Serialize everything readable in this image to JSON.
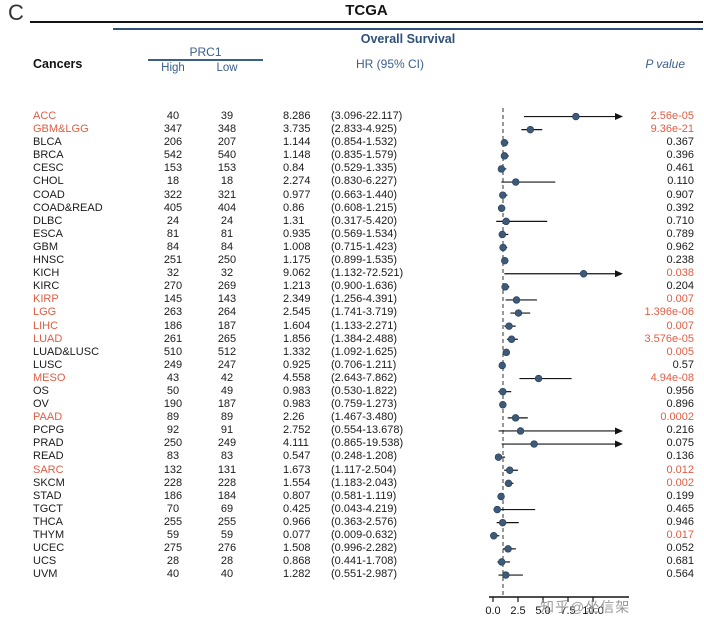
{
  "panel_label": "C",
  "title": "TCGA",
  "subtitle": "Overall Survival",
  "watermark": "知乎@坐信架",
  "header": {
    "cancers": "Cancers",
    "group": "PRC1",
    "high": "High",
    "low": "Low",
    "hr_ci": "HR (95% CI)",
    "p_value": "P value"
  },
  "colors": {
    "accent_blue": "#3c5f8c",
    "line_blue": "#2e517c",
    "point_blue": "#3d5a7a",
    "highlight_red": "#e05c43",
    "axis_black": "#141414"
  },
  "chart_data": {
    "type": "forest",
    "title": "TCGA",
    "subtitle": "Overall Survival",
    "xlim": [
      0,
      12.5
    ],
    "dashed_line_x": 1,
    "tick_values": [
      0,
      2.5,
      5,
      7.5,
      10
    ],
    "tick_labels": [
      "0.0",
      "2.5",
      "5.0",
      "7.5",
      "10.0"
    ],
    "rows": [
      {
        "cancer": "ACC",
        "high": 40,
        "low": 39,
        "hr": 8.286,
        "ci": "(3.096-22.117)",
        "ci_low": 3.096,
        "ci_high": 22.117,
        "p": "2.56e-05",
        "red_name": true,
        "red_p": true
      },
      {
        "cancer": "GBM&LGG",
        "high": 347,
        "low": 348,
        "hr": 3.735,
        "ci": "(2.833-4.925)",
        "ci_low": 2.833,
        "ci_high": 4.925,
        "p": "9.36e-21",
        "red_name": true,
        "red_p": true
      },
      {
        "cancer": "BLCA",
        "high": 206,
        "low": 207,
        "hr": 1.144,
        "ci": "(0.854-1.532)",
        "ci_low": 0.854,
        "ci_high": 1.532,
        "p": "0.367",
        "red_name": false,
        "red_p": false
      },
      {
        "cancer": "BRCA",
        "high": 542,
        "low": 540,
        "hr": 1.148,
        "ci": "(0.835-1.579)",
        "ci_low": 0.835,
        "ci_high": 1.579,
        "p": "0.396",
        "red_name": false,
        "red_p": false
      },
      {
        "cancer": "CESC",
        "high": 153,
        "low": 153,
        "hr": 0.84,
        "ci": "(0.529-1.335)",
        "ci_low": 0.529,
        "ci_high": 1.335,
        "p": "0.461",
        "red_name": false,
        "red_p": false
      },
      {
        "cancer": "CHOL",
        "high": 18,
        "low": 18,
        "hr": 2.274,
        "ci": "(0.830-6.227)",
        "ci_low": 0.83,
        "ci_high": 6.227,
        "p": "0.110",
        "red_name": false,
        "red_p": false
      },
      {
        "cancer": "COAD",
        "high": 322,
        "low": 321,
        "hr": 0.977,
        "ci": "(0.663-1.440)",
        "ci_low": 0.663,
        "ci_high": 1.44,
        "p": "0.907",
        "red_name": false,
        "red_p": false
      },
      {
        "cancer": "COAD&READ",
        "high": 405,
        "low": 404,
        "hr": 0.86,
        "ci": "(0.608-1.215)",
        "ci_low": 0.608,
        "ci_high": 1.215,
        "p": "0.392",
        "red_name": false,
        "red_p": false
      },
      {
        "cancer": "DLBC",
        "high": 24,
        "low": 24,
        "hr": 1.31,
        "ci": "(0.317-5.420)",
        "ci_low": 0.317,
        "ci_high": 5.42,
        "p": "0.710",
        "red_name": false,
        "red_p": false
      },
      {
        "cancer": "ESCA",
        "high": 81,
        "low": 81,
        "hr": 0.935,
        "ci": "(0.569-1.534)",
        "ci_low": 0.569,
        "ci_high": 1.534,
        "p": "0.789",
        "red_name": false,
        "red_p": false
      },
      {
        "cancer": "GBM",
        "high": 84,
        "low": 84,
        "hr": 1.008,
        "ci": "(0.715-1.423)",
        "ci_low": 0.715,
        "ci_high": 1.423,
        "p": "0.962",
        "red_name": false,
        "red_p": false
      },
      {
        "cancer": "HNSC",
        "high": 251,
        "low": 250,
        "hr": 1.175,
        "ci": "(0.899-1.535)",
        "ci_low": 0.899,
        "ci_high": 1.535,
        "p": "0.238",
        "red_name": false,
        "red_p": false
      },
      {
        "cancer": "KICH",
        "high": 32,
        "low": 32,
        "hr": 9.062,
        "ci": "(1.132-72.521)",
        "ci_low": 1.132,
        "ci_high": 72.521,
        "p": "0.038",
        "red_name": false,
        "red_p": true
      },
      {
        "cancer": "KIRC",
        "high": 270,
        "low": 269,
        "hr": 1.213,
        "ci": "(0.900-1.636)",
        "ci_low": 0.9,
        "ci_high": 1.636,
        "p": "0.204",
        "red_name": false,
        "red_p": false
      },
      {
        "cancer": "KIRP",
        "high": 145,
        "low": 143,
        "hr": 2.349,
        "ci": "(1.256-4.391)",
        "ci_low": 1.256,
        "ci_high": 4.391,
        "p": "0.007",
        "red_name": true,
        "red_p": true
      },
      {
        "cancer": "LGG",
        "high": 263,
        "low": 264,
        "hr": 2.545,
        "ci": "(1.741-3.719)",
        "ci_low": 1.741,
        "ci_high": 3.719,
        "p": "1.396e-06",
        "red_name": true,
        "red_p": true
      },
      {
        "cancer": "LIHC",
        "high": 186,
        "low": 187,
        "hr": 1.604,
        "ci": "(1.133-2.271)",
        "ci_low": 1.133,
        "ci_high": 2.271,
        "p": "0.007",
        "red_name": true,
        "red_p": true
      },
      {
        "cancer": "LUAD",
        "high": 261,
        "low": 265,
        "hr": 1.856,
        "ci": "(1.384-2.488)",
        "ci_low": 1.384,
        "ci_high": 2.488,
        "p": "3.576e-05",
        "red_name": true,
        "red_p": true
      },
      {
        "cancer": "LUAD&LUSC",
        "high": 510,
        "low": 512,
        "hr": 1.332,
        "ci": "(1.092-1.625)",
        "ci_low": 1.092,
        "ci_high": 1.625,
        "p": "0.005",
        "red_name": false,
        "red_p": true
      },
      {
        "cancer": "LUSC",
        "high": 249,
        "low": 247,
        "hr": 0.925,
        "ci": "(0.706-1.211)",
        "ci_low": 0.706,
        "ci_high": 1.211,
        "p": "0.57",
        "red_name": false,
        "red_p": false
      },
      {
        "cancer": "MESO",
        "high": 43,
        "low": 42,
        "hr": 4.558,
        "ci": "(2.643-7.862)",
        "ci_low": 2.643,
        "ci_high": 7.862,
        "p": "4.94e-08",
        "red_name": true,
        "red_p": true
      },
      {
        "cancer": "OS",
        "high": 50,
        "low": 49,
        "hr": 0.983,
        "ci": "(0.530-1.822)",
        "ci_low": 0.53,
        "ci_high": 1.822,
        "p": "0.956",
        "red_name": false,
        "red_p": false
      },
      {
        "cancer": "OV",
        "high": 190,
        "low": 187,
        "hr": 0.983,
        "ci": "(0.759-1.273)",
        "ci_low": 0.759,
        "ci_high": 1.273,
        "p": "0.896",
        "red_name": false,
        "red_p": false
      },
      {
        "cancer": "PAAD",
        "high": 89,
        "low": 89,
        "hr": 2.26,
        "ci": "(1.467-3.480)",
        "ci_low": 1.467,
        "ci_high": 3.48,
        "p": "0.0002",
        "red_name": true,
        "red_p": true
      },
      {
        "cancer": "PCPG",
        "high": 92,
        "low": 91,
        "hr": 2.752,
        "ci": "(0.554-13.678)",
        "ci_low": 0.554,
        "ci_high": 13.678,
        "p": "0.216",
        "red_name": false,
        "red_p": false
      },
      {
        "cancer": "PRAD",
        "high": 250,
        "low": 249,
        "hr": 4.111,
        "ci": "(0.865-19.538)",
        "ci_low": 0.865,
        "ci_high": 19.538,
        "p": "0.075",
        "red_name": false,
        "red_p": false
      },
      {
        "cancer": "READ",
        "high": 83,
        "low": 83,
        "hr": 0.547,
        "ci": "(0.248-1.208)",
        "ci_low": 0.248,
        "ci_high": 1.208,
        "p": "0.136",
        "red_name": false,
        "red_p": false
      },
      {
        "cancer": "SARC",
        "high": 132,
        "low": 131,
        "hr": 1.673,
        "ci": "(1.117-2.504)",
        "ci_low": 1.117,
        "ci_high": 2.504,
        "p": "0.012",
        "red_name": true,
        "red_p": true
      },
      {
        "cancer": "SKCM",
        "high": 228,
        "low": 228,
        "hr": 1.554,
        "ci": "(1.183-2.043)",
        "ci_low": 1.183,
        "ci_high": 2.043,
        "p": "0.002",
        "red_name": false,
        "red_p": true
      },
      {
        "cancer": "STAD",
        "high": 186,
        "low": 184,
        "hr": 0.807,
        "ci": "(0.581-1.119)",
        "ci_low": 0.581,
        "ci_high": 1.119,
        "p": "0.199",
        "red_name": false,
        "red_p": false
      },
      {
        "cancer": "TGCT",
        "high": 70,
        "low": 69,
        "hr": 0.425,
        "ci": "(0.043-4.219)",
        "ci_low": 0.043,
        "ci_high": 4.219,
        "p": "0.465",
        "red_name": false,
        "red_p": false
      },
      {
        "cancer": "THCA",
        "high": 255,
        "low": 255,
        "hr": 0.966,
        "ci": "(0.363-2.576)",
        "ci_low": 0.363,
        "ci_high": 2.576,
        "p": "0.946",
        "red_name": false,
        "red_p": false
      },
      {
        "cancer": "THYM",
        "high": 59,
        "low": 59,
        "hr": 0.077,
        "ci": "(0.009-0.632)",
        "ci_low": 0.009,
        "ci_high": 0.632,
        "p": "0.017",
        "red_name": false,
        "red_p": true
      },
      {
        "cancer": "UCEC",
        "high": 275,
        "low": 276,
        "hr": 1.508,
        "ci": "(0.996-2.282)",
        "ci_low": 0.996,
        "ci_high": 2.282,
        "p": "0.052",
        "red_name": false,
        "red_p": false
      },
      {
        "cancer": "UCS",
        "high": 28,
        "low": 28,
        "hr": 0.868,
        "ci": "(0.441-1.708)",
        "ci_low": 0.441,
        "ci_high": 1.708,
        "p": "0.681",
        "red_name": false,
        "red_p": false
      },
      {
        "cancer": "UVM",
        "high": 40,
        "low": 40,
        "hr": 1.282,
        "ci": "(0.551-2.987)",
        "ci_low": 0.551,
        "ci_high": 2.987,
        "p": "0.564",
        "red_name": false,
        "red_p": false
      }
    ]
  }
}
